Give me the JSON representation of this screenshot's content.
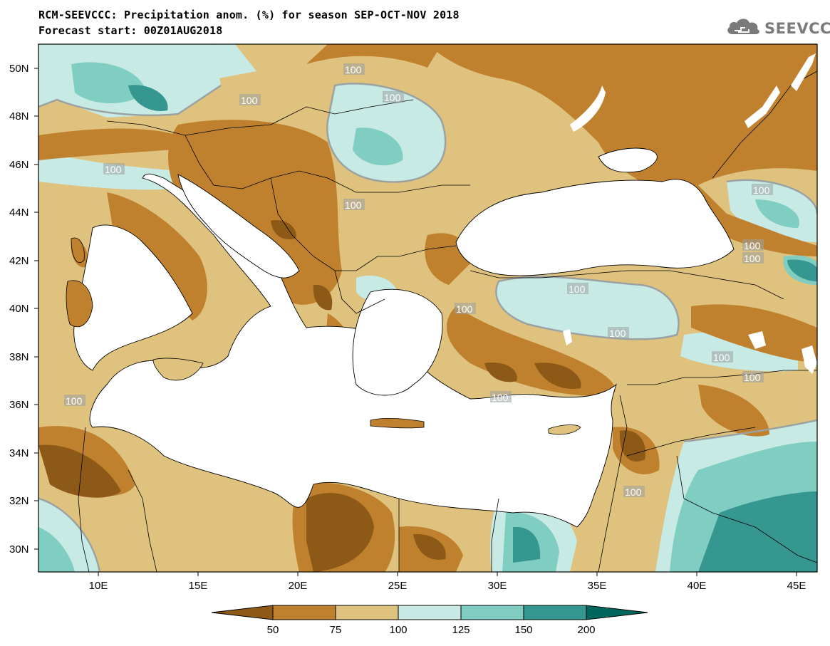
{
  "header": {
    "title_line_1": "RCM-SEEVCCC: Precipitation anom. (%) for season SEP-OCT-NOV 2018",
    "title_line_2": "Forecast start: 00Z01AUG2018",
    "logo_text": "SEEVCCC"
  },
  "map": {
    "region": "Eastern Mediterranean / Black Sea",
    "lon_range": [
      7,
      46
    ],
    "lat_range": [
      29,
      51
    ],
    "lat_ticks": [
      "50N",
      "48N",
      "46N",
      "44N",
      "42N",
      "40N",
      "38N",
      "36N",
      "34N",
      "32N",
      "30N"
    ],
    "lon_ticks": [
      "10E",
      "15E",
      "20E",
      "25E",
      "30E",
      "35E",
      "40E",
      "45E"
    ],
    "contour_labels": [
      "100",
      "100",
      "100",
      "100",
      "100",
      "100",
      "100",
      "100",
      "100",
      "100",
      "100",
      "100",
      "100",
      "100",
      "100",
      "100"
    ]
  },
  "colorbar": {
    "tick_labels": [
      "50",
      "75",
      "100",
      "125",
      "150",
      "200"
    ],
    "colors": [
      "#8c5a16",
      "#bf812d",
      "#dfc27d",
      "#c7eae5",
      "#80cdc1",
      "#35978f",
      "#01665e"
    ]
  }
}
